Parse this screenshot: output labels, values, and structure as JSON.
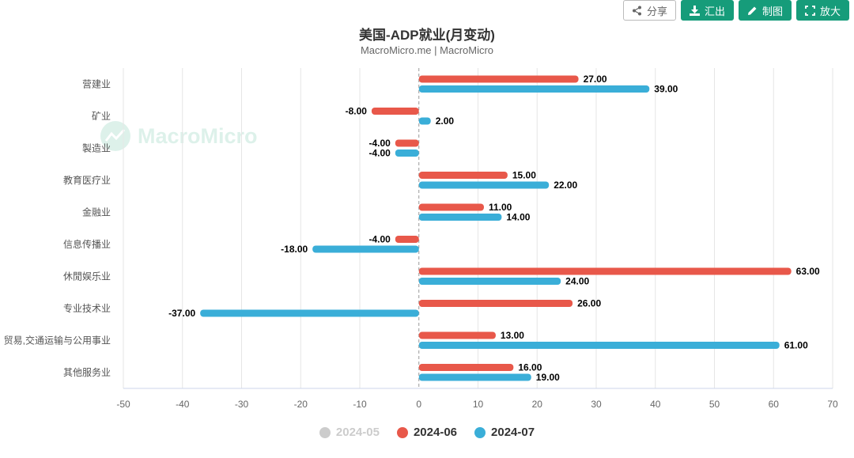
{
  "toolbar": {
    "share_label": "分享",
    "export_label": "汇出",
    "draw_label": "制图",
    "zoom_label": "放大"
  },
  "header": {
    "title": "美国-ADP就业(月变动)",
    "subtitle": "MacroMicro.me | MacroMicro"
  },
  "watermark": {
    "text": "MacroMicro"
  },
  "chart_data": {
    "type": "bar",
    "orientation": "horizontal",
    "title": "美国-ADP就业(月变动)",
    "subtitle": "MacroMicro.me | MacroMicro",
    "categories": [
      "营建业",
      "矿业",
      "製造业",
      "教育医疗业",
      "金融业",
      "信息传播业",
      "休閒娱乐业",
      "专业技术业",
      "贸易,交通运输与公用事业",
      "其他服务业"
    ],
    "series": [
      {
        "name": "2024-05",
        "color": "#cccccc",
        "visible": false,
        "values": null
      },
      {
        "name": "2024-06",
        "color": "#e8584a",
        "visible": true,
        "values": [
          27,
          -8,
          -4,
          15,
          11,
          -4,
          63,
          26,
          13,
          16
        ]
      },
      {
        "name": "2024-07",
        "color": "#3aaed8",
        "visible": true,
        "values": [
          39,
          2,
          -4,
          22,
          14,
          -18,
          24,
          -37,
          61,
          19
        ]
      }
    ],
    "xlim": [
      -50,
      70
    ],
    "xticks": [
      -50,
      -40,
      -30,
      -20,
      -10,
      0,
      10,
      20,
      30,
      40,
      50,
      60,
      70
    ],
    "grid": true,
    "legend_position": "bottom"
  }
}
